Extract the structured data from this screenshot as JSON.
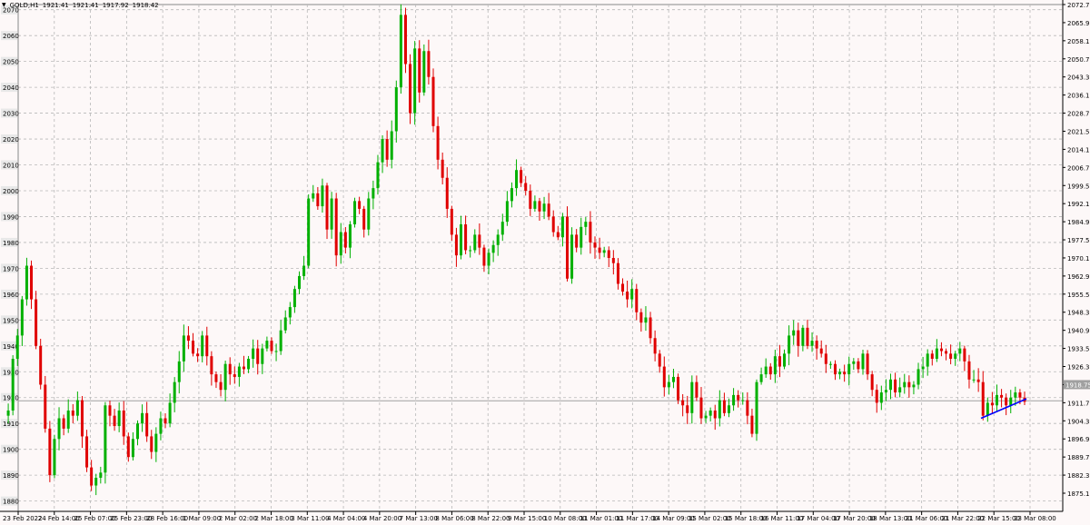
{
  "header": {
    "dropdown_glyph": "▼",
    "symbol": "GOLD,H1",
    "open": "1921.41",
    "high": "1921.41",
    "low": "1917.92",
    "close": "1918.42"
  },
  "colors": {
    "bull": "#00b000",
    "bear": "#e00000",
    "grid": "#b8b8b8",
    "background": "#fdf8f8",
    "trendline": "#0000ff",
    "price_line": "#a0a0a0",
    "price_label_bg": "#a0a0a0"
  },
  "chart_data": {
    "type": "candlestick",
    "title": "",
    "grid": true,
    "left_axis_ticks": [
      2070,
      2060,
      2050,
      2040,
      2030,
      2020,
      2010,
      2000,
      1990,
      1980,
      1970,
      1960,
      1950,
      1940,
      1930,
      1920,
      1910,
      1900,
      1890,
      1880
    ],
    "right_axis_ticks": [
      "2072.77",
      "2065.97",
      "2058.17",
      "2050.77",
      "2043.37",
      "2036.17",
      "2028.77",
      "2021.57",
      "2014.17",
      "2006.77",
      "1999.57",
      "1992.17",
      "1984.97",
      "1977.57",
      "1970.17",
      "1962.97",
      "1955.57",
      "1948.37",
      "1940.97",
      "1933.57",
      "1926.37",
      "1918.75",
      "1911.77",
      "1904.37",
      "1896.97",
      "1889.77",
      "1882.37",
      "1875.17"
    ],
    "x_axis_ticks": [
      "23 Feb 2022",
      "24 Feb 14:00",
      "25 Feb 07:00",
      "25 Feb 23:00",
      "28 Feb 16:00",
      "1 Mar 09:00",
      "2 Mar 02:00",
      "2 Mar 18:00",
      "3 Mar 11:00",
      "4 Mar 04:00",
      "4 Mar 20:00",
      "7 Mar 13:00",
      "8 Mar 06:00",
      "8 Mar 22:00",
      "9 Mar 15:00",
      "10 Mar 08:00",
      "11 Mar 01:00",
      "11 Mar 17:00",
      "14 Mar 09:00",
      "15 Mar 02:00",
      "15 Mar 18:00",
      "16 Mar 11:00",
      "17 Mar 04:00",
      "17 Mar 20:00",
      "18 Mar 13:00",
      "21 Mar 06:00",
      "21 Mar 22:00",
      "22 Mar 15:00",
      "23 Mar 08:00"
    ],
    "current_price": "1918.75",
    "ylim": [
      1876,
      2072
    ],
    "close_path": [
      1913,
      1915,
      1935,
      1944,
      1958,
      1971,
      1958,
      1940,
      1925,
      1908,
      1890,
      1904,
      1912,
      1908,
      1915,
      1913,
      1919,
      1905,
      1893,
      1886,
      1889,
      1891,
      1917,
      1913,
      1909,
      1915,
      1905,
      1897,
      1904,
      1910,
      1914,
      1905,
      1899,
      1906,
      1912,
      1910,
      1918,
      1926,
      1934,
      1944,
      1942,
      1937,
      1936,
      1944,
      1936,
      1929,
      1926,
      1923,
      1933,
      1929,
      1928,
      1932,
      1931,
      1935,
      1939,
      1933,
      1939,
      1942,
      1938,
      1938,
      1946,
      1951,
      1955,
      1962,
      1967,
      1971,
      1997,
      1999,
      1994,
      2002,
      1985,
      1997,
      1975,
      1984,
      1978,
      1987,
      1996,
      1993,
      1985,
      1997,
      2001,
      2011,
      2020,
      2012,
      2023,
      2040,
      2068,
      2049,
      2030,
      2055,
      2038,
      2054,
      2044,
      2025,
      2012,
      2005,
      1993,
      1983,
      1975,
      1987,
      1977,
      1977,
      1983,
      1978,
      1971,
      1976,
      1979,
      1983,
      1988,
      1996,
      2001,
      2008,
      2003,
      2000,
      1993,
      1996,
      1992,
      1995,
      1990,
      1984,
      1982,
      1990,
      1966,
      1983,
      1978,
      1986,
      1988,
      1980,
      1978,
      1976,
      1977,
      1974,
      1972,
      1964,
      1961,
      1958,
      1962,
      1953,
      1949,
      1951,
      1943,
      1937,
      1932,
      1924,
      1926,
      1928,
      1919,
      1917,
      1914,
      1926,
      1920,
      1912,
      1913,
      1915,
      1912,
      1919,
      1914,
      1917,
      1921,
      1919,
      1919,
      1913,
      1906,
      1926,
      1929,
      1932,
      1929,
      1936,
      1932,
      1937,
      1944,
      1946,
      1940,
      1947,
      1940,
      1942,
      1939,
      1937,
      1933,
      1933,
      1929,
      1930,
      1929,
      1933,
      1934,
      1931,
      1937,
      1929,
      1923,
      1918,
      1922,
      1923,
      1927,
      1922,
      1924,
      1926,
      1924,
      1925,
      1931,
      1932,
      1937,
      1935,
      1939,
      1938,
      1937,
      1935,
      1937,
      1939,
      1934,
      1927,
      1927,
      1926,
      1913,
      1918,
      1917,
      1921,
      1920,
      1917,
      1920,
      1922,
      1920,
      1918.4
    ]
  }
}
